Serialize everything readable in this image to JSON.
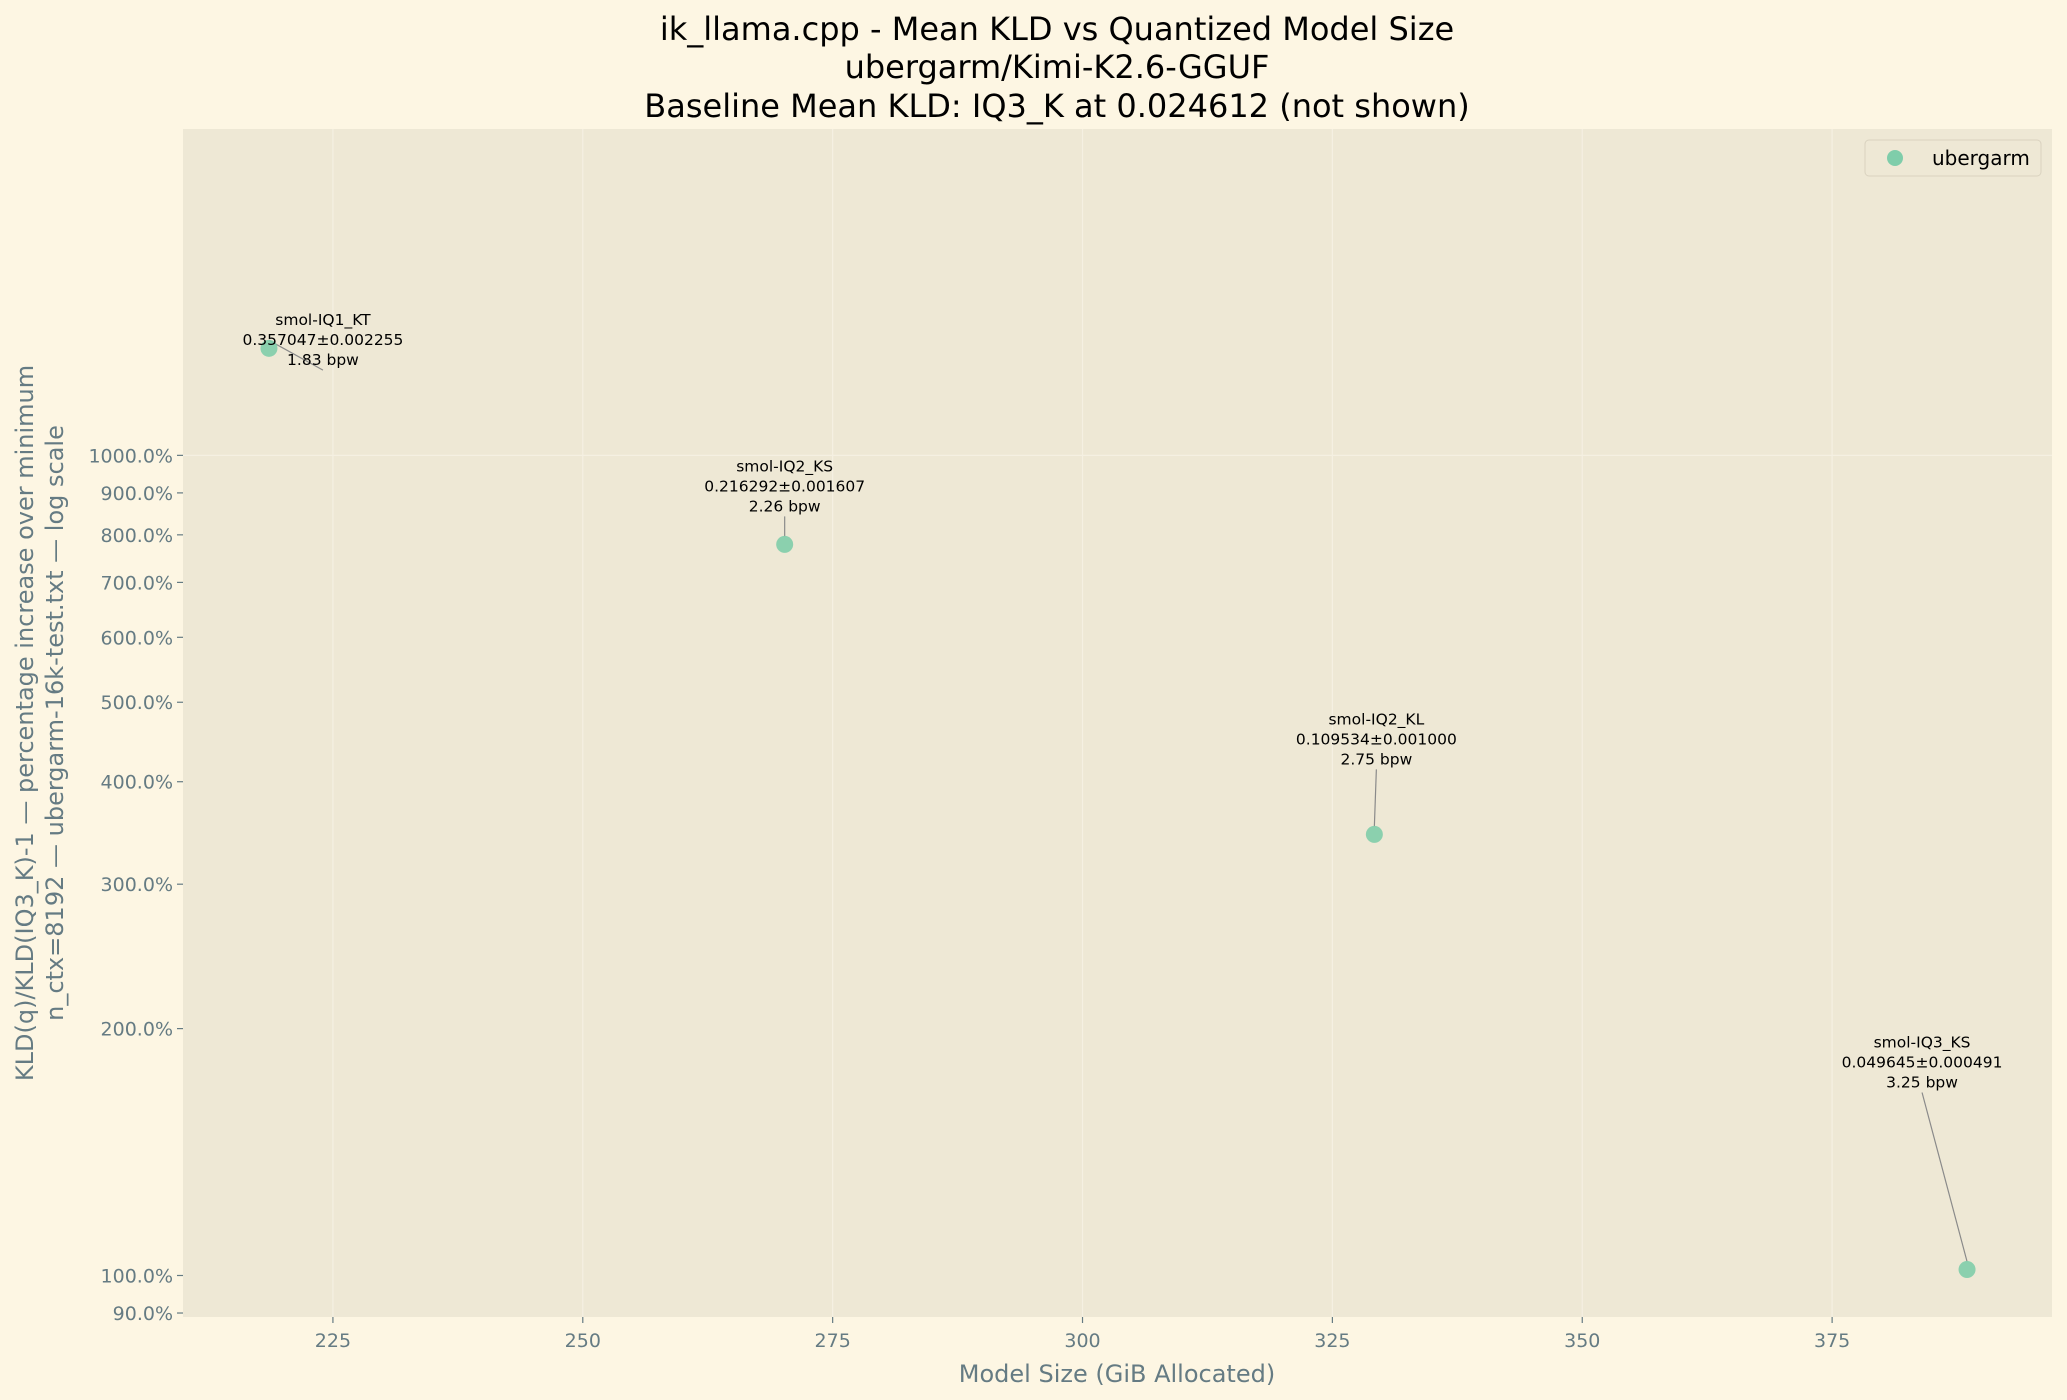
{
  "colors": {
    "page_background": "#fdf6e3",
    "plot_background": "#eee8d5",
    "marker": "#7fcdaa",
    "axis_text": "#657b83",
    "grid": "#f5f0e2",
    "leader_line": "#8a8a8a"
  },
  "chart_data": {
    "type": "scatter",
    "title": [
      "ik_llama.cpp - Mean KLD vs Quantized Model Size",
      "ubergarm/Kimi-K2.6-GGUF",
      "Baseline Mean KLD: IQ3_K at 0.024612 (not shown)"
    ],
    "xlabel": "Model Size (GiB Allocated)",
    "ylabel": [
      "KLD(q)/KLD(IQ3_K)-1 — percentage increase over minimum",
      "n_ctx=8192 — ubergarm-16k-test.txt — log scale"
    ],
    "xlim": [
      210,
      397
    ],
    "ylim": [
      89,
      2500
    ],
    "y_scale": "log",
    "grid": true,
    "legend_position": "top-right",
    "x_ticks": [
      {
        "value": 225,
        "label": "225"
      },
      {
        "value": 250,
        "label": "250"
      },
      {
        "value": 275,
        "label": "275"
      },
      {
        "value": 300,
        "label": "300"
      },
      {
        "value": 325,
        "label": "325"
      },
      {
        "value": 350,
        "label": "350"
      },
      {
        "value": 375,
        "label": "375"
      }
    ],
    "y_ticks": [
      {
        "value": 90,
        "label": "90.0%"
      },
      {
        "value": 100,
        "label": "100.0%"
      },
      {
        "value": 200,
        "label": "200.0%"
      },
      {
        "value": 300,
        "label": "300.0%"
      },
      {
        "value": 400,
        "label": "400.0%"
      },
      {
        "value": 500,
        "label": "500.0%"
      },
      {
        "value": 600,
        "label": "600.0%"
      },
      {
        "value": 700,
        "label": "700.0%"
      },
      {
        "value": 800,
        "label": "800.0%"
      },
      {
        "value": 900,
        "label": "900.0%"
      },
      {
        "value": 1000,
        "label": "1000.0%"
      }
    ],
    "series": [
      {
        "name": "ubergarm",
        "points": [
          {
            "x": 218.6,
            "y": 1350.6,
            "label": [
              "smol-IQ1_KT",
              "0.357047±0.002255",
              "1.83 bpw"
            ]
          },
          {
            "x": 270.2,
            "y": 778.8,
            "label": [
              "smol-IQ2_KS",
              "0.216292±0.001607",
              "2.26 bpw"
            ]
          },
          {
            "x": 329.2,
            "y": 345.0,
            "label": [
              "smol-IQ2_KL",
              "0.109534±0.001000",
              "2.75 bpw"
            ]
          },
          {
            "x": 388.5,
            "y": 101.7,
            "label": [
              "smol-IQ3_KS",
              "0.049645±0.000491",
              "3.25 bpw"
            ]
          }
        ]
      }
    ]
  }
}
